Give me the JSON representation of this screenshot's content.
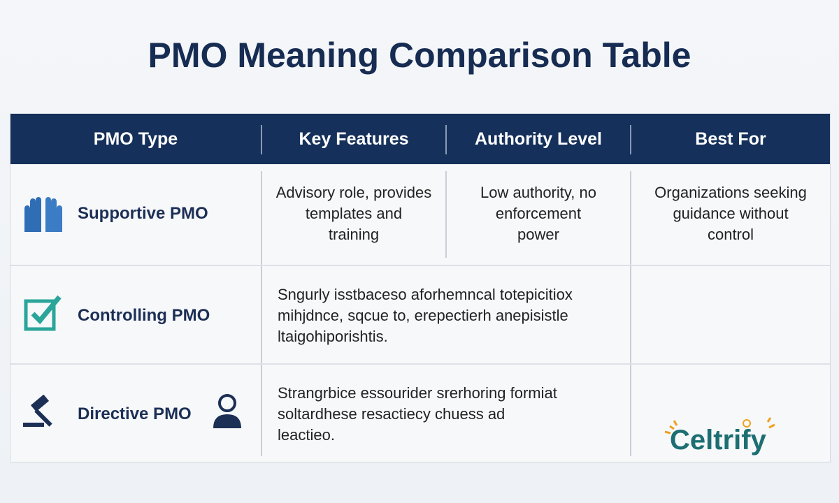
{
  "title": "PMO Meaning Comparison Table",
  "table": {
    "headers": [
      "PMO Type",
      "Key Features",
      "Authority Level",
      "Best For"
    ],
    "rows": [
      {
        "type": "Supportive PMO",
        "features": [
          "Advisory role, provides",
          "templates and",
          "training"
        ],
        "authority": [
          "Low authority, no",
          "enforcement",
          "power"
        ],
        "best_for": [
          "Organizations seeking",
          "guidance without",
          "control"
        ]
      },
      {
        "type": "Controlling PMO",
        "features": [
          "Sngurly isstbaceso aforhemncal totepicitiox",
          "mihjdnce, sqcue to, erepectierh anepisistle",
          "ltaigohiporishtis."
        ]
      },
      {
        "type": "Directive PMO",
        "features": [
          "Strangrbice essourider srerhoring formiat",
          "soltardhese resactiecy chuess ad",
          "leactieo."
        ]
      }
    ]
  },
  "logo": "Celtrify"
}
